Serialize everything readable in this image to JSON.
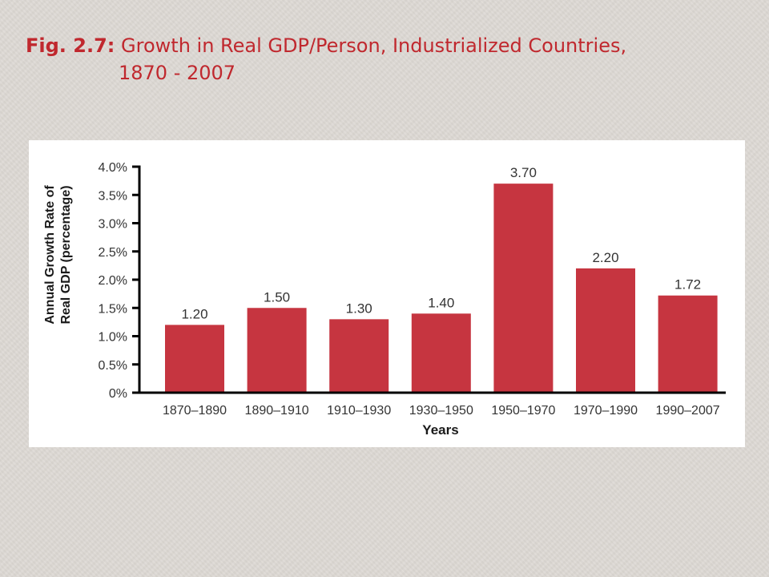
{
  "slide": {
    "title_label": "Fig. 2.7:",
    "title_text": "Growth in Real GDP/Person, Industrialized Countries,",
    "title_years": "1870 - 2007"
  },
  "colors": {
    "background": "#ddd9d4",
    "title": "#c0282e",
    "bar": "#c63540",
    "axis": "#000000"
  },
  "chart_data": {
    "type": "bar",
    "categories": [
      "1870–1890",
      "1890–1910",
      "1910–1930",
      "1930–1950",
      "1950–1970",
      "1970–1990",
      "1990–2007"
    ],
    "values": [
      1.2,
      1.5,
      1.3,
      1.4,
      3.7,
      2.2,
      1.72
    ],
    "data_labels": [
      "1.20",
      "1.50",
      "1.30",
      "1.40",
      "3.70",
      "2.20",
      "1.72"
    ],
    "ylabel_line1": "Annual Growth Rate of",
    "ylabel_line2": "Real GDP (percentage)",
    "xlabel": "Years",
    "yticks": [
      0,
      0.5,
      1.0,
      1.5,
      2.0,
      2.5,
      3.0,
      3.5,
      4.0
    ],
    "ytick_labels": [
      "0%",
      "0.5%",
      "1.0%",
      "1.5%",
      "2.0%",
      "2.5%",
      "3.0%",
      "3.5%",
      "4.0%"
    ],
    "ylim": [
      0,
      4.0
    ],
    "grid": false,
    "legend": "none"
  }
}
